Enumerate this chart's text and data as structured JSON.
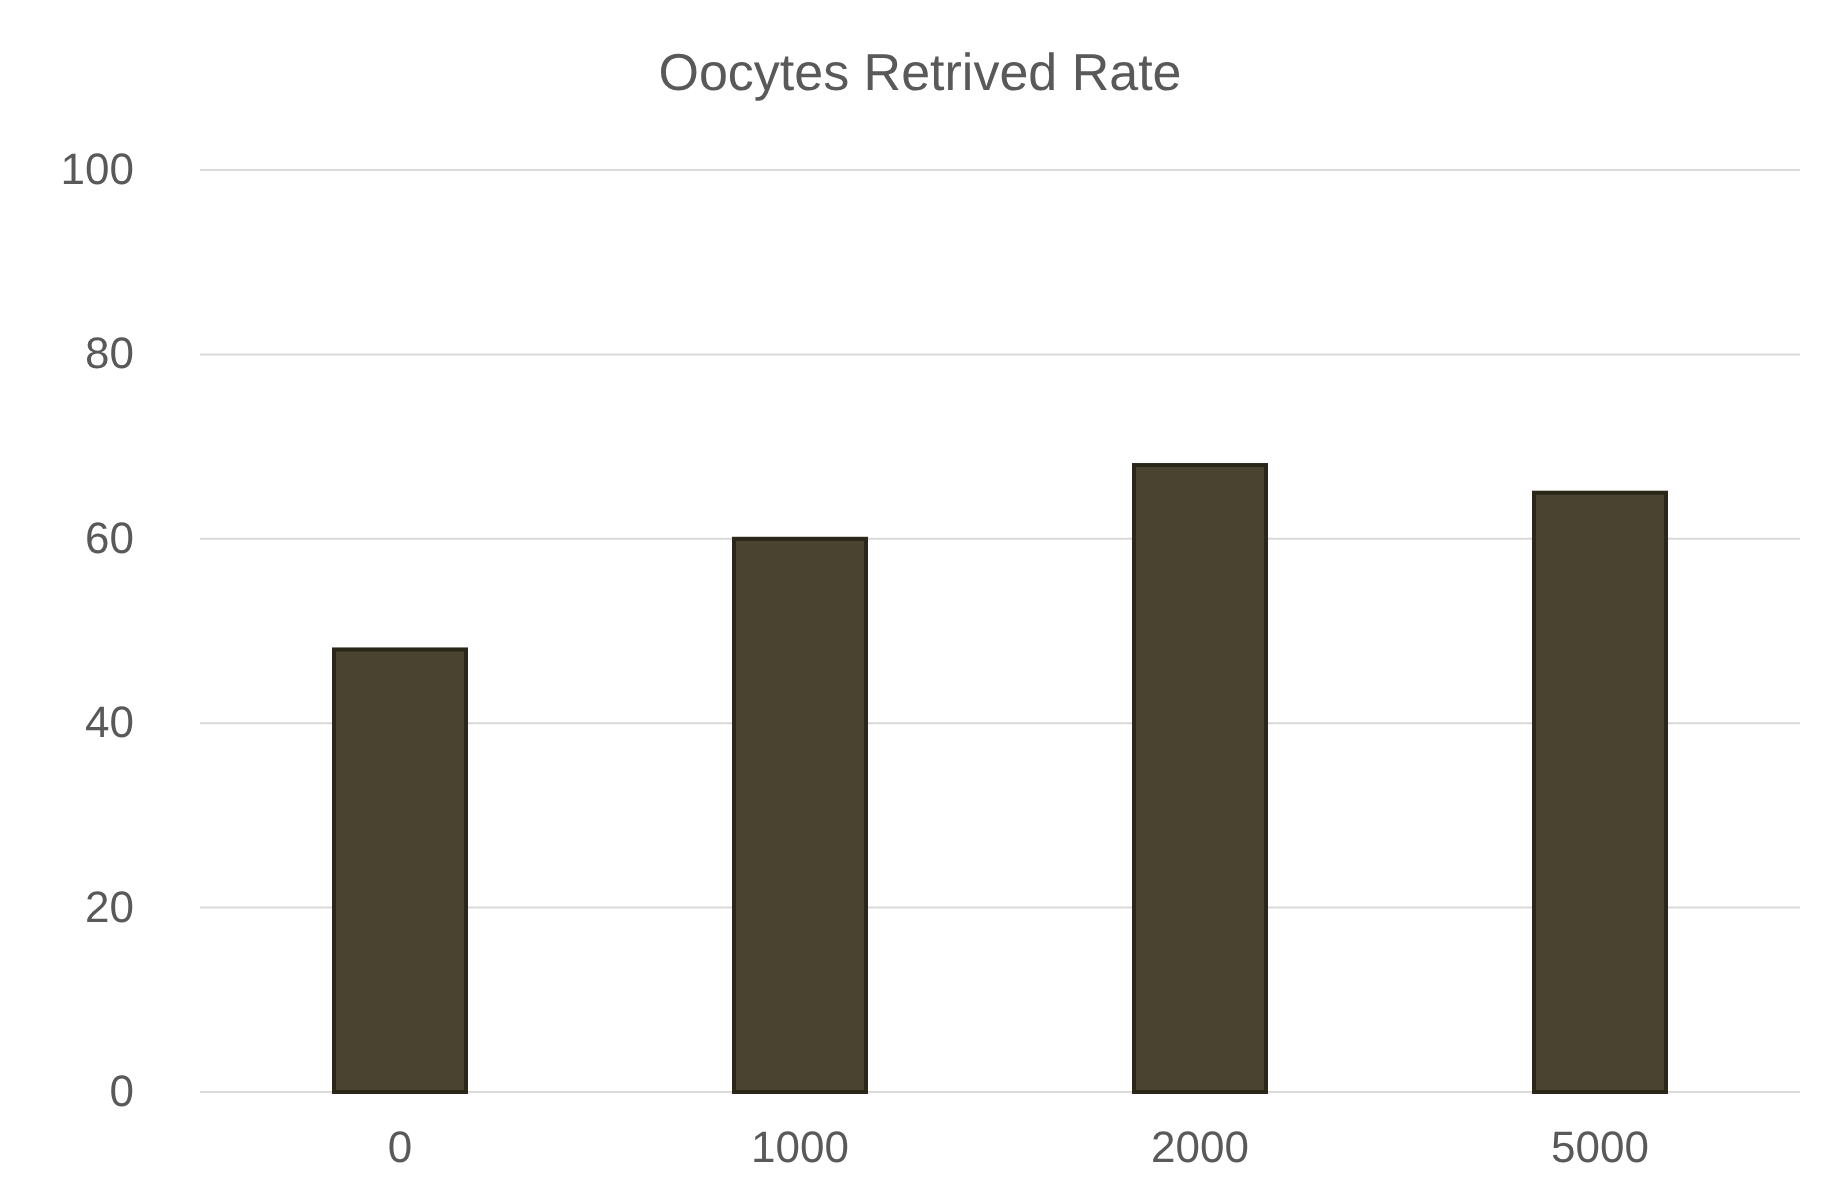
{
  "chart_data": {
    "type": "bar",
    "title": "Oocytes Retrived Rate",
    "categories": [
      "0",
      "1000",
      "2000",
      "5000"
    ],
    "values": [
      48,
      60,
      68,
      65
    ],
    "color": "#4a4330",
    "ylim": [
      0,
      100
    ],
    "yticks": [
      0,
      20,
      40,
      60,
      80,
      100
    ],
    "grid": "y"
  }
}
